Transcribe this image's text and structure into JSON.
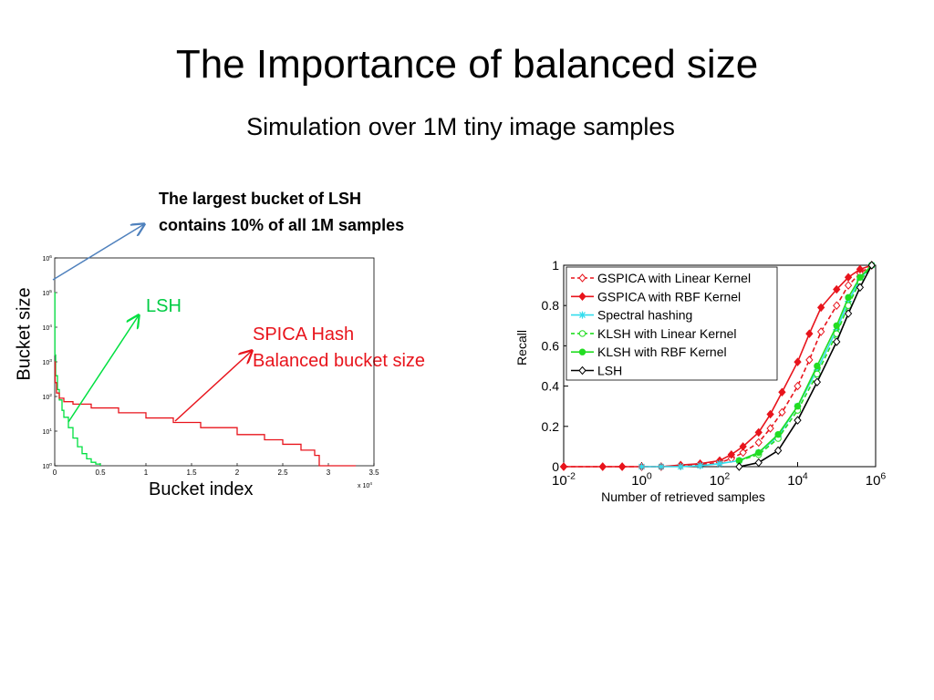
{
  "slide": {
    "title": "The Importance of balanced size",
    "subtitle": "Simulation over 1M tiny image samples",
    "note_line1": "The largest bucket of LSH",
    "note_line2": "contains 10% of all 1M samples",
    "lsh_label": "LSH",
    "spica_line1": "SPICA Hash",
    "spica_line2": "Balanced bucket size",
    "left_ylabel": "Bucket size",
    "left_xlabel": "Bucket index"
  },
  "colors": {
    "lsh_green": "#00e040",
    "spica_red": "#e8141c",
    "pointer_blue": "#4f81bd"
  },
  "chart_data": [
    {
      "type": "line",
      "ylabel": "Bucket size",
      "xlabel": "Bucket index",
      "x_scale_note": "x 10^4",
      "xlim": [
        0,
        3.5
      ],
      "ylim_log10": [
        0,
        6
      ],
      "x_ticks": [
        "0",
        "0.5",
        "1",
        "1.5",
        "2",
        "2.5",
        "3",
        "3.5"
      ],
      "y_ticks": [
        "10^0",
        "10^1",
        "10^2",
        "10^3",
        "10^4",
        "10^5",
        "10^6"
      ],
      "series": [
        {
          "name": "LSH",
          "color": "#00e040",
          "x": [
            0,
            0.002,
            0.01,
            0.03,
            0.05,
            0.08,
            0.1,
            0.15,
            0.2,
            0.25,
            0.3,
            0.35,
            0.4,
            0.45,
            0.5
          ],
          "y_log10": [
            5.0,
            3.2,
            2.6,
            2.2,
            1.9,
            1.6,
            1.4,
            1.1,
            0.8,
            0.55,
            0.35,
            0.2,
            0.1,
            0.05,
            0
          ]
        },
        {
          "name": "SPICA Hash",
          "color": "#e8141c",
          "x": [
            0,
            0.005,
            0.02,
            0.05,
            0.1,
            0.2,
            0.4,
            0.7,
            1.0,
            1.3,
            1.6,
            2.0,
            2.3,
            2.5,
            2.7,
            2.85,
            2.9,
            3.0,
            3.3
          ],
          "y_log10": [
            3.0,
            2.4,
            2.1,
            1.95,
            1.85,
            1.78,
            1.67,
            1.53,
            1.38,
            1.25,
            1.1,
            0.9,
            0.75,
            0.62,
            0.45,
            0.3,
            0,
            0,
            0
          ]
        }
      ]
    },
    {
      "type": "line",
      "xlabel": "Number of retrieved samples",
      "ylabel": "Recall",
      "x_scale": "log",
      "xlim_log10": [
        -2,
        6
      ],
      "ylim": [
        0,
        1
      ],
      "x_ticks": [
        "10^-2",
        "10^0",
        "10^2",
        "10^4",
        "10^6"
      ],
      "y_ticks": [
        "0",
        "0.2",
        "0.4",
        "0.6",
        "0.8",
        "1"
      ],
      "legend": "top-left",
      "series": [
        {
          "name": "GSPICA with Linear Kernel",
          "color": "#e8141c",
          "dash": true,
          "marker": "diamond-open",
          "x_log10": [
            -2,
            -1,
            -0.5,
            0,
            0.5,
            1,
            1.5,
            2,
            2.3,
            2.6,
            3,
            3.3,
            3.6,
            4,
            4.3,
            4.6,
            5,
            5.3,
            5.6,
            5.9
          ],
          "y": [
            0,
            0,
            0,
            0,
            0,
            0.005,
            0.01,
            0.02,
            0.04,
            0.07,
            0.12,
            0.19,
            0.27,
            0.4,
            0.53,
            0.67,
            0.8,
            0.9,
            0.96,
            1.0
          ]
        },
        {
          "name": "GSPICA with RBF Kernel",
          "color": "#e8141c",
          "dash": false,
          "marker": "diamond",
          "x_log10": [
            -2,
            -1,
            -0.5,
            0,
            0.5,
            1,
            1.5,
            2,
            2.3,
            2.6,
            3,
            3.3,
            3.6,
            4,
            4.3,
            4.6,
            5,
            5.3,
            5.6,
            5.9
          ],
          "y": [
            0,
            0,
            0,
            0,
            0,
            0.008,
            0.015,
            0.03,
            0.06,
            0.1,
            0.17,
            0.26,
            0.37,
            0.52,
            0.66,
            0.79,
            0.88,
            0.94,
            0.98,
            1.0
          ]
        },
        {
          "name": "Spectral hashing",
          "color": "#33ddee",
          "dash": false,
          "marker": "star",
          "x_log10": [
            0,
            0.5,
            1,
            1.5,
            2,
            2.5,
            3,
            3.5,
            4,
            4.5,
            5,
            5.3,
            5.6,
            5.9
          ],
          "y": [
            0,
            0,
            0,
            0.005,
            0.015,
            0.03,
            0.07,
            0.15,
            0.3,
            0.48,
            0.68,
            0.82,
            0.93,
            1.0
          ]
        },
        {
          "name": "KLSH with Linear Kernel",
          "color": "#22dd22",
          "dash": true,
          "marker": "circle-open",
          "x_log10": [
            2.5,
            3,
            3.5,
            4,
            4.5,
            5,
            5.3,
            5.6,
            5.9
          ],
          "y": [
            0.03,
            0.06,
            0.14,
            0.28,
            0.46,
            0.66,
            0.8,
            0.92,
            1.0
          ]
        },
        {
          "name": "KLSH with RBF Kernel",
          "color": "#22dd22",
          "dash": false,
          "marker": "circle",
          "x_log10": [
            2.5,
            3,
            3.5,
            4,
            4.5,
            5,
            5.3,
            5.6,
            5.9
          ],
          "y": [
            0.03,
            0.07,
            0.16,
            0.3,
            0.5,
            0.7,
            0.84,
            0.94,
            1.0
          ]
        },
        {
          "name": "LSH",
          "color": "#000000",
          "dash": false,
          "marker": "diamond-open",
          "x_log10": [
            2.5,
            3,
            3.5,
            4,
            4.5,
            5,
            5.3,
            5.6,
            5.9
          ],
          "y": [
            0,
            0.02,
            0.08,
            0.23,
            0.42,
            0.62,
            0.76,
            0.89,
            1.0
          ]
        }
      ]
    }
  ]
}
